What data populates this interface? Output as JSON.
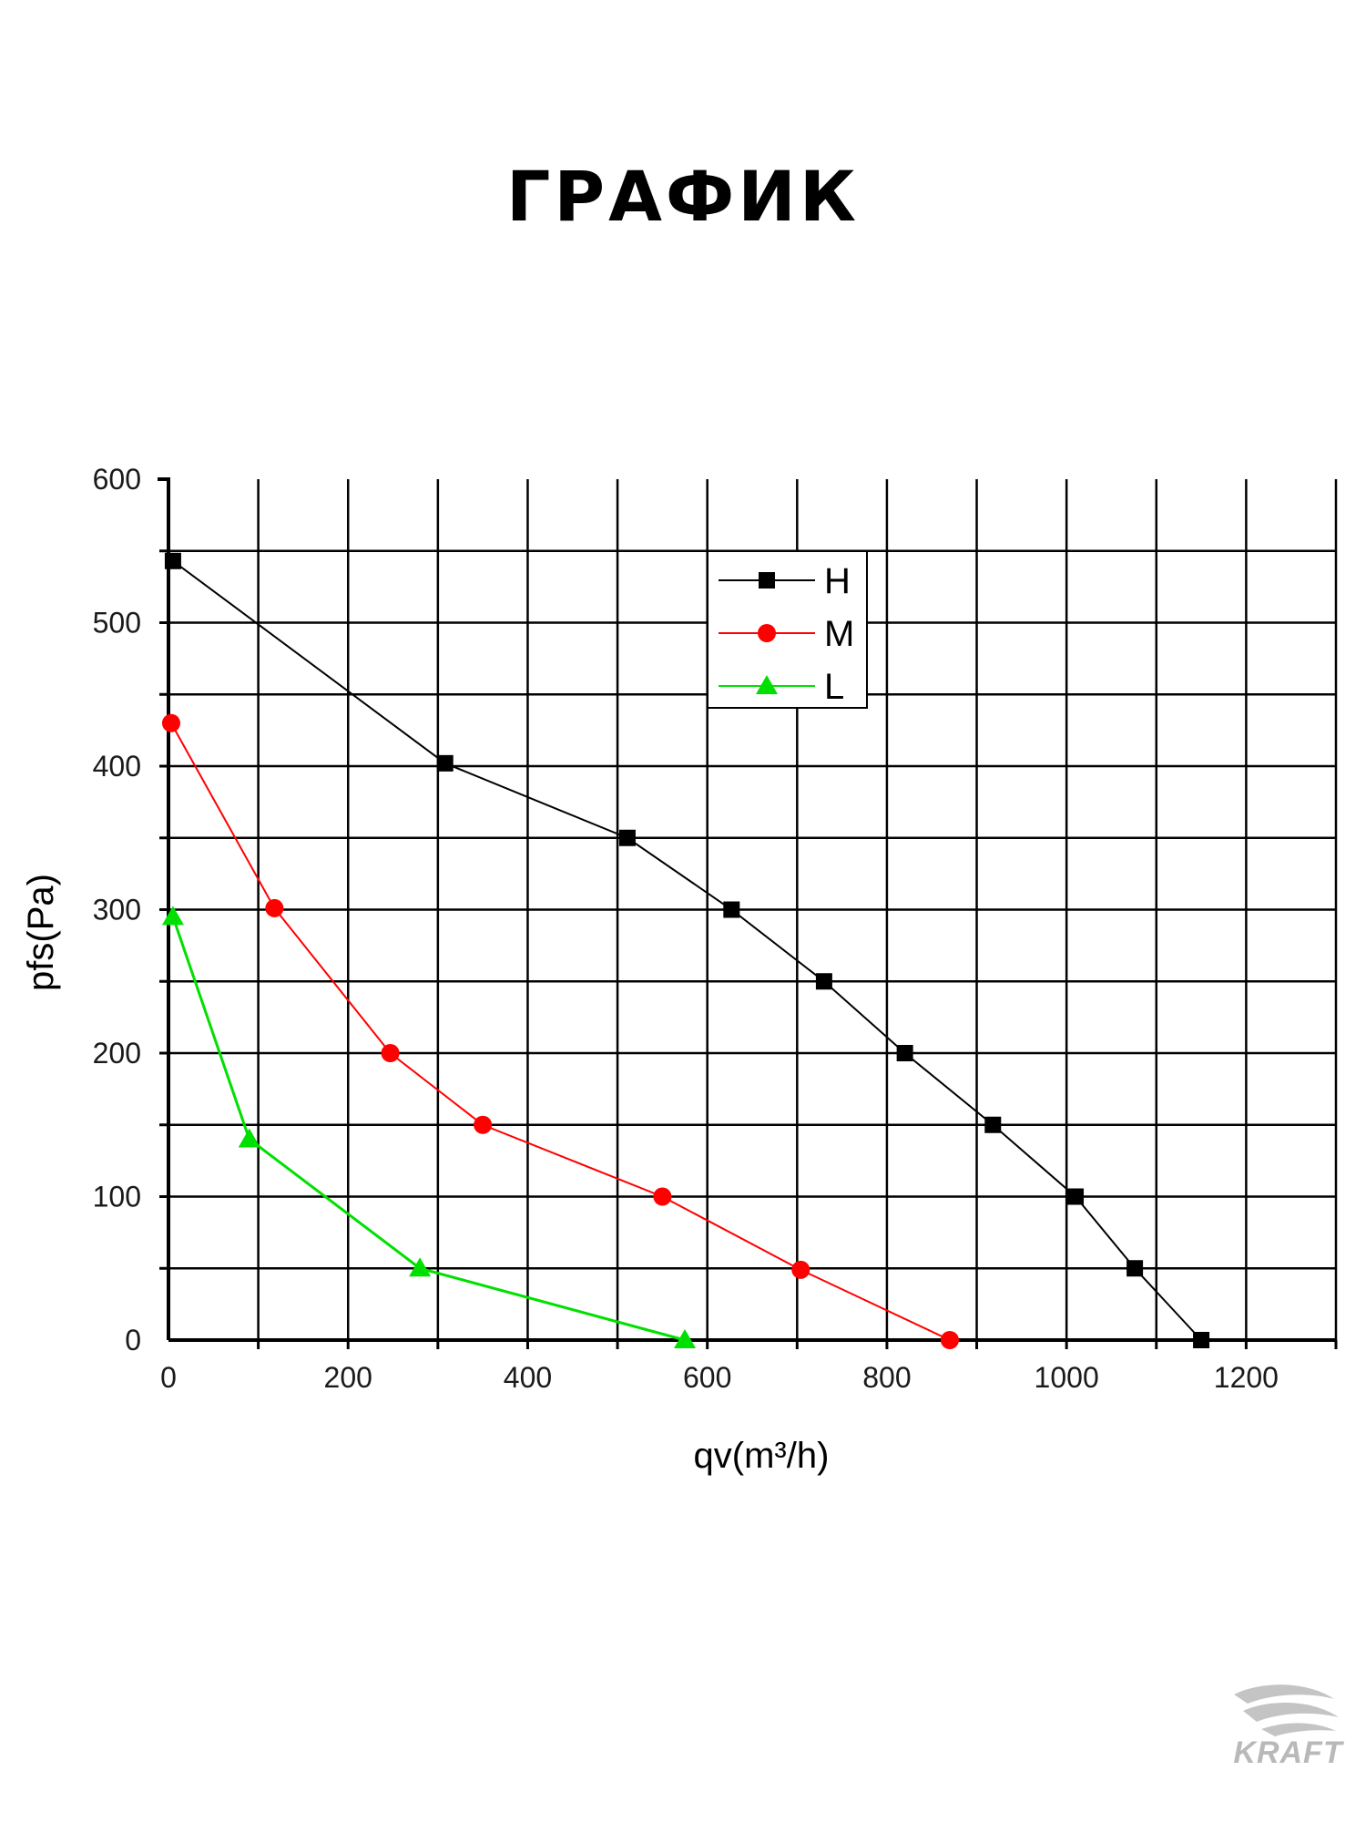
{
  "page": {
    "title": "ГРАФИК",
    "logo_text": "KRAFT"
  },
  "chart_data": {
    "type": "line",
    "title": "",
    "xlabel": "qv(m³/h)",
    "ylabel": "pfs(Pa)",
    "xlim": [
      0,
      1300
    ],
    "ylim": [
      0,
      600
    ],
    "x_ticks": [
      0,
      200,
      400,
      600,
      800,
      1000,
      1200
    ],
    "y_ticks": [
      0,
      100,
      200,
      300,
      400,
      500,
      600
    ],
    "grid": true,
    "legend_position": "top-center",
    "series": [
      {
        "name": "H",
        "color": "#000000",
        "marker": "square",
        "points": [
          [
            5,
            543
          ],
          [
            308,
            402
          ],
          [
            511,
            350
          ],
          [
            627,
            300
          ],
          [
            730,
            250
          ],
          [
            820,
            200
          ],
          [
            918,
            150
          ],
          [
            1010,
            100
          ],
          [
            1076,
            50
          ],
          [
            1150,
            0
          ]
        ]
      },
      {
        "name": "M",
        "color": "#ff0000",
        "marker": "circle",
        "points": [
          [
            3,
            430
          ],
          [
            118,
            301
          ],
          [
            247,
            200
          ],
          [
            350,
            150
          ],
          [
            550,
            100
          ],
          [
            704,
            49
          ],
          [
            870,
            0
          ]
        ]
      },
      {
        "name": "L",
        "color": "#00e000",
        "marker": "triangle",
        "points": [
          [
            5,
            295
          ],
          [
            90,
            140
          ],
          [
            280,
            50
          ],
          [
            575,
            0
          ]
        ]
      }
    ]
  }
}
